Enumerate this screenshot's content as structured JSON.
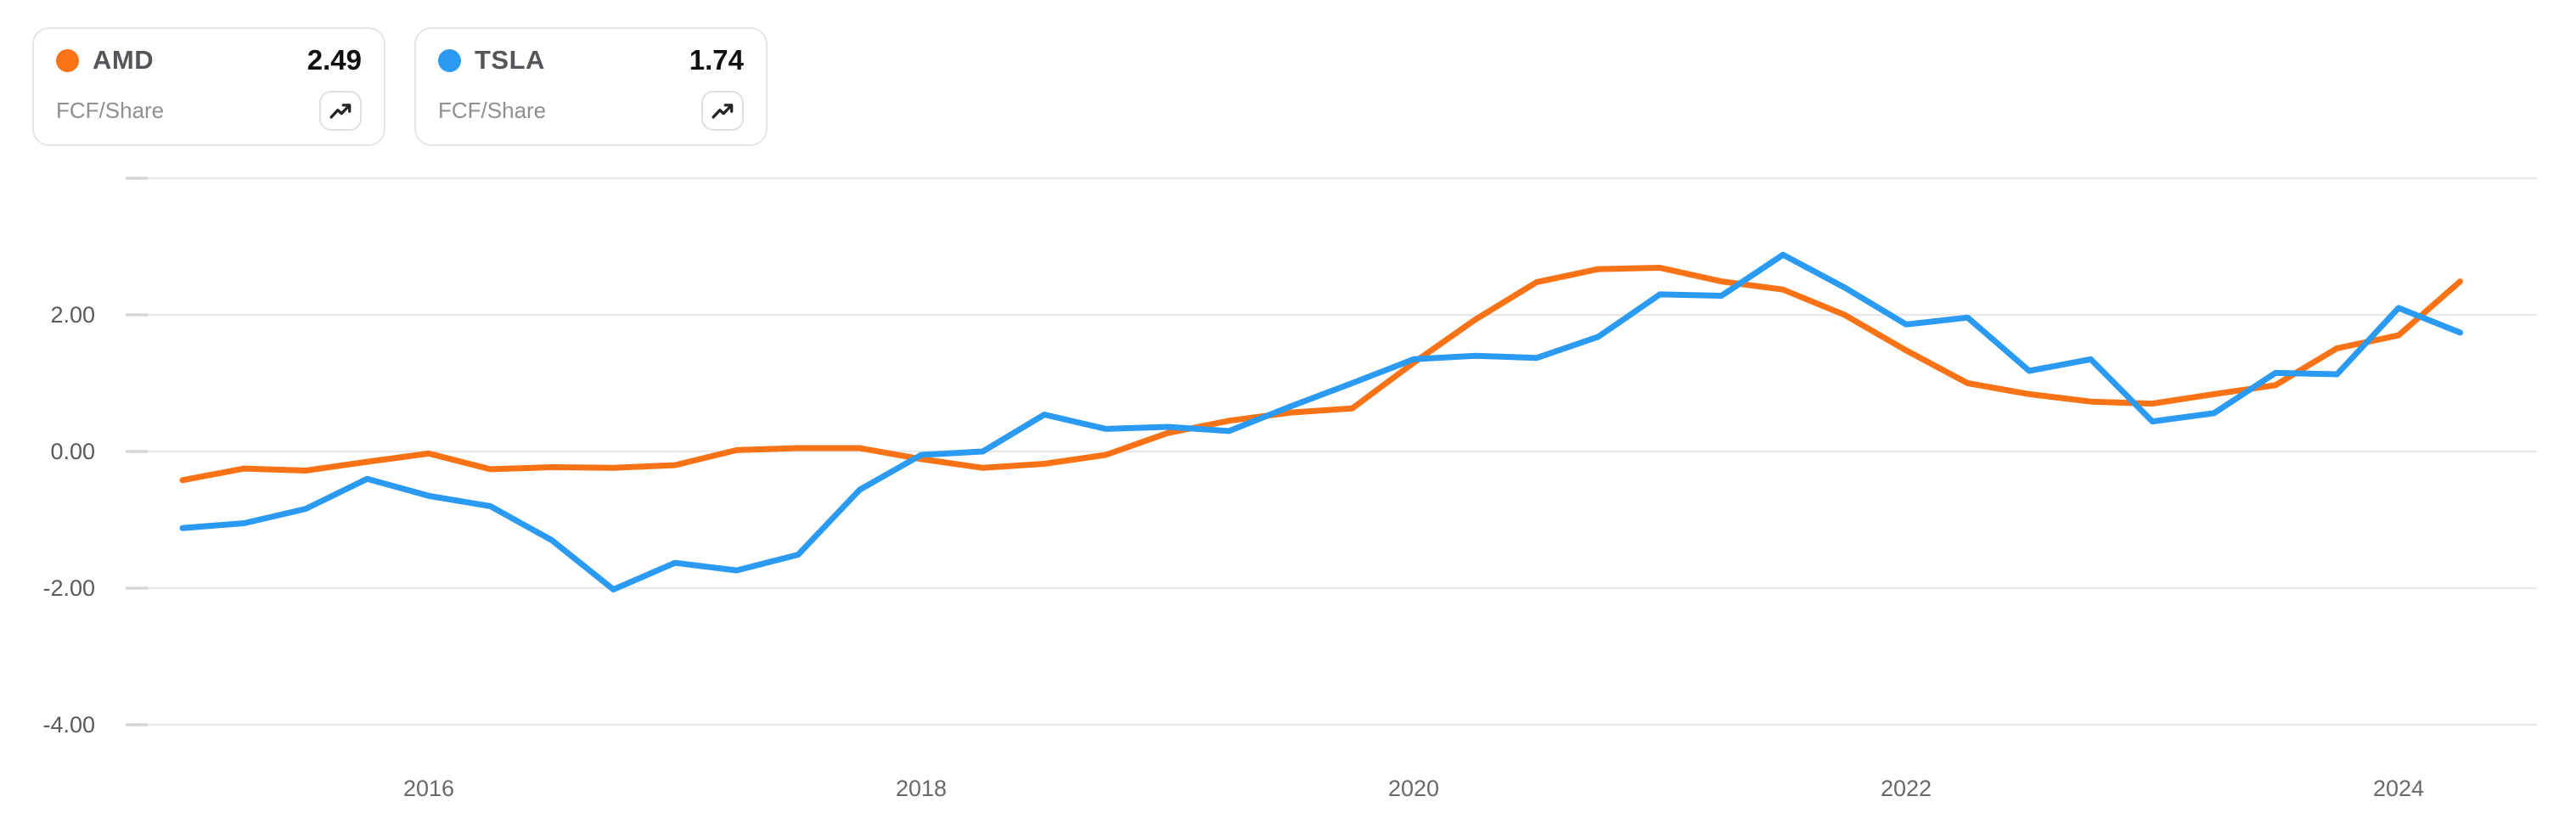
{
  "legend": {
    "cards": [
      {
        "symbol": "AMD",
        "value": "2.49",
        "metric": "FCF/Share",
        "dot_color": "#f97316",
        "icon": "trending-up-icon"
      },
      {
        "symbol": "TSLA",
        "value": "1.74",
        "metric": "FCF/Share",
        "dot_color": "#2b9af3",
        "icon": "trending-up-icon"
      }
    ]
  },
  "chart_data": {
    "type": "line",
    "title": "",
    "xlabel": "",
    "ylabel": "FCF/Share",
    "grid": "horizontal-only",
    "legend_position": "top-left-cards",
    "x": [
      2015.0,
      2015.25,
      2015.5,
      2015.75,
      2016.0,
      2016.25,
      2016.5,
      2016.75,
      2017.0,
      2017.25,
      2017.5,
      2017.75,
      2018.0,
      2018.25,
      2018.5,
      2018.75,
      2019.0,
      2019.25,
      2019.5,
      2019.75,
      2020.0,
      2020.25,
      2020.5,
      2020.75,
      2021.0,
      2021.25,
      2021.5,
      2021.75,
      2022.0,
      2022.25,
      2022.5,
      2022.75,
      2023.0,
      2023.25,
      2023.5,
      2023.75,
      2024.0,
      2024.25
    ],
    "series": [
      {
        "name": "AMD",
        "metric": "FCF/Share",
        "color": "#f97316",
        "current_value": 2.49,
        "values": [
          -0.42,
          -0.25,
          -0.28,
          -0.15,
          -0.03,
          -0.26,
          -0.23,
          -0.24,
          -0.2,
          0.02,
          0.05,
          0.05,
          -0.11,
          -0.24,
          -0.18,
          -0.05,
          0.27,
          0.45,
          0.57,
          0.63,
          1.3,
          1.93,
          2.48,
          2.67,
          2.69,
          2.49,
          2.37,
          2.0,
          1.48,
          1.0,
          0.84,
          0.73,
          0.7,
          0.84,
          0.97,
          1.51,
          1.7,
          2.49
        ]
      },
      {
        "name": "TSLA",
        "metric": "FCF/Share",
        "color": "#2b9af3",
        "current_value": 1.74,
        "values": [
          -1.12,
          -1.05,
          -0.84,
          -0.4,
          -0.65,
          -0.8,
          -1.3,
          -2.02,
          -1.63,
          -1.74,
          -1.51,
          -0.56,
          -0.05,
          0.0,
          0.54,
          0.33,
          0.36,
          0.3,
          0.66,
          1.0,
          1.35,
          1.4,
          1.37,
          1.68,
          2.3,
          2.28,
          2.88,
          2.4,
          1.86,
          1.96,
          1.18,
          1.35,
          0.44,
          0.56,
          1.15,
          1.13,
          2.1,
          1.74
        ]
      }
    ],
    "x_axis": {
      "tick_labels": [
        "2016",
        "2018",
        "2020",
        "2022",
        "2024"
      ],
      "tick_values": [
        2016,
        2018,
        2020,
        2022,
        2024
      ],
      "xlim": [
        2014.77,
        2024.57
      ]
    },
    "y_axis": {
      "tick_values": [
        4,
        2,
        0,
        -2,
        -4
      ],
      "tick_labels": [
        "",
        "2.00",
        "0.00",
        "-2.00",
        "-4.00"
      ],
      "ylim": [
        -4.55,
        4.55
      ]
    },
    "colors": {
      "gridline": "#e8e8ea",
      "axis_tick_stub": "#d5d5d9",
      "y_label": "#5a5a5e",
      "x_label": "#69696d",
      "background": "#ffffff"
    }
  }
}
